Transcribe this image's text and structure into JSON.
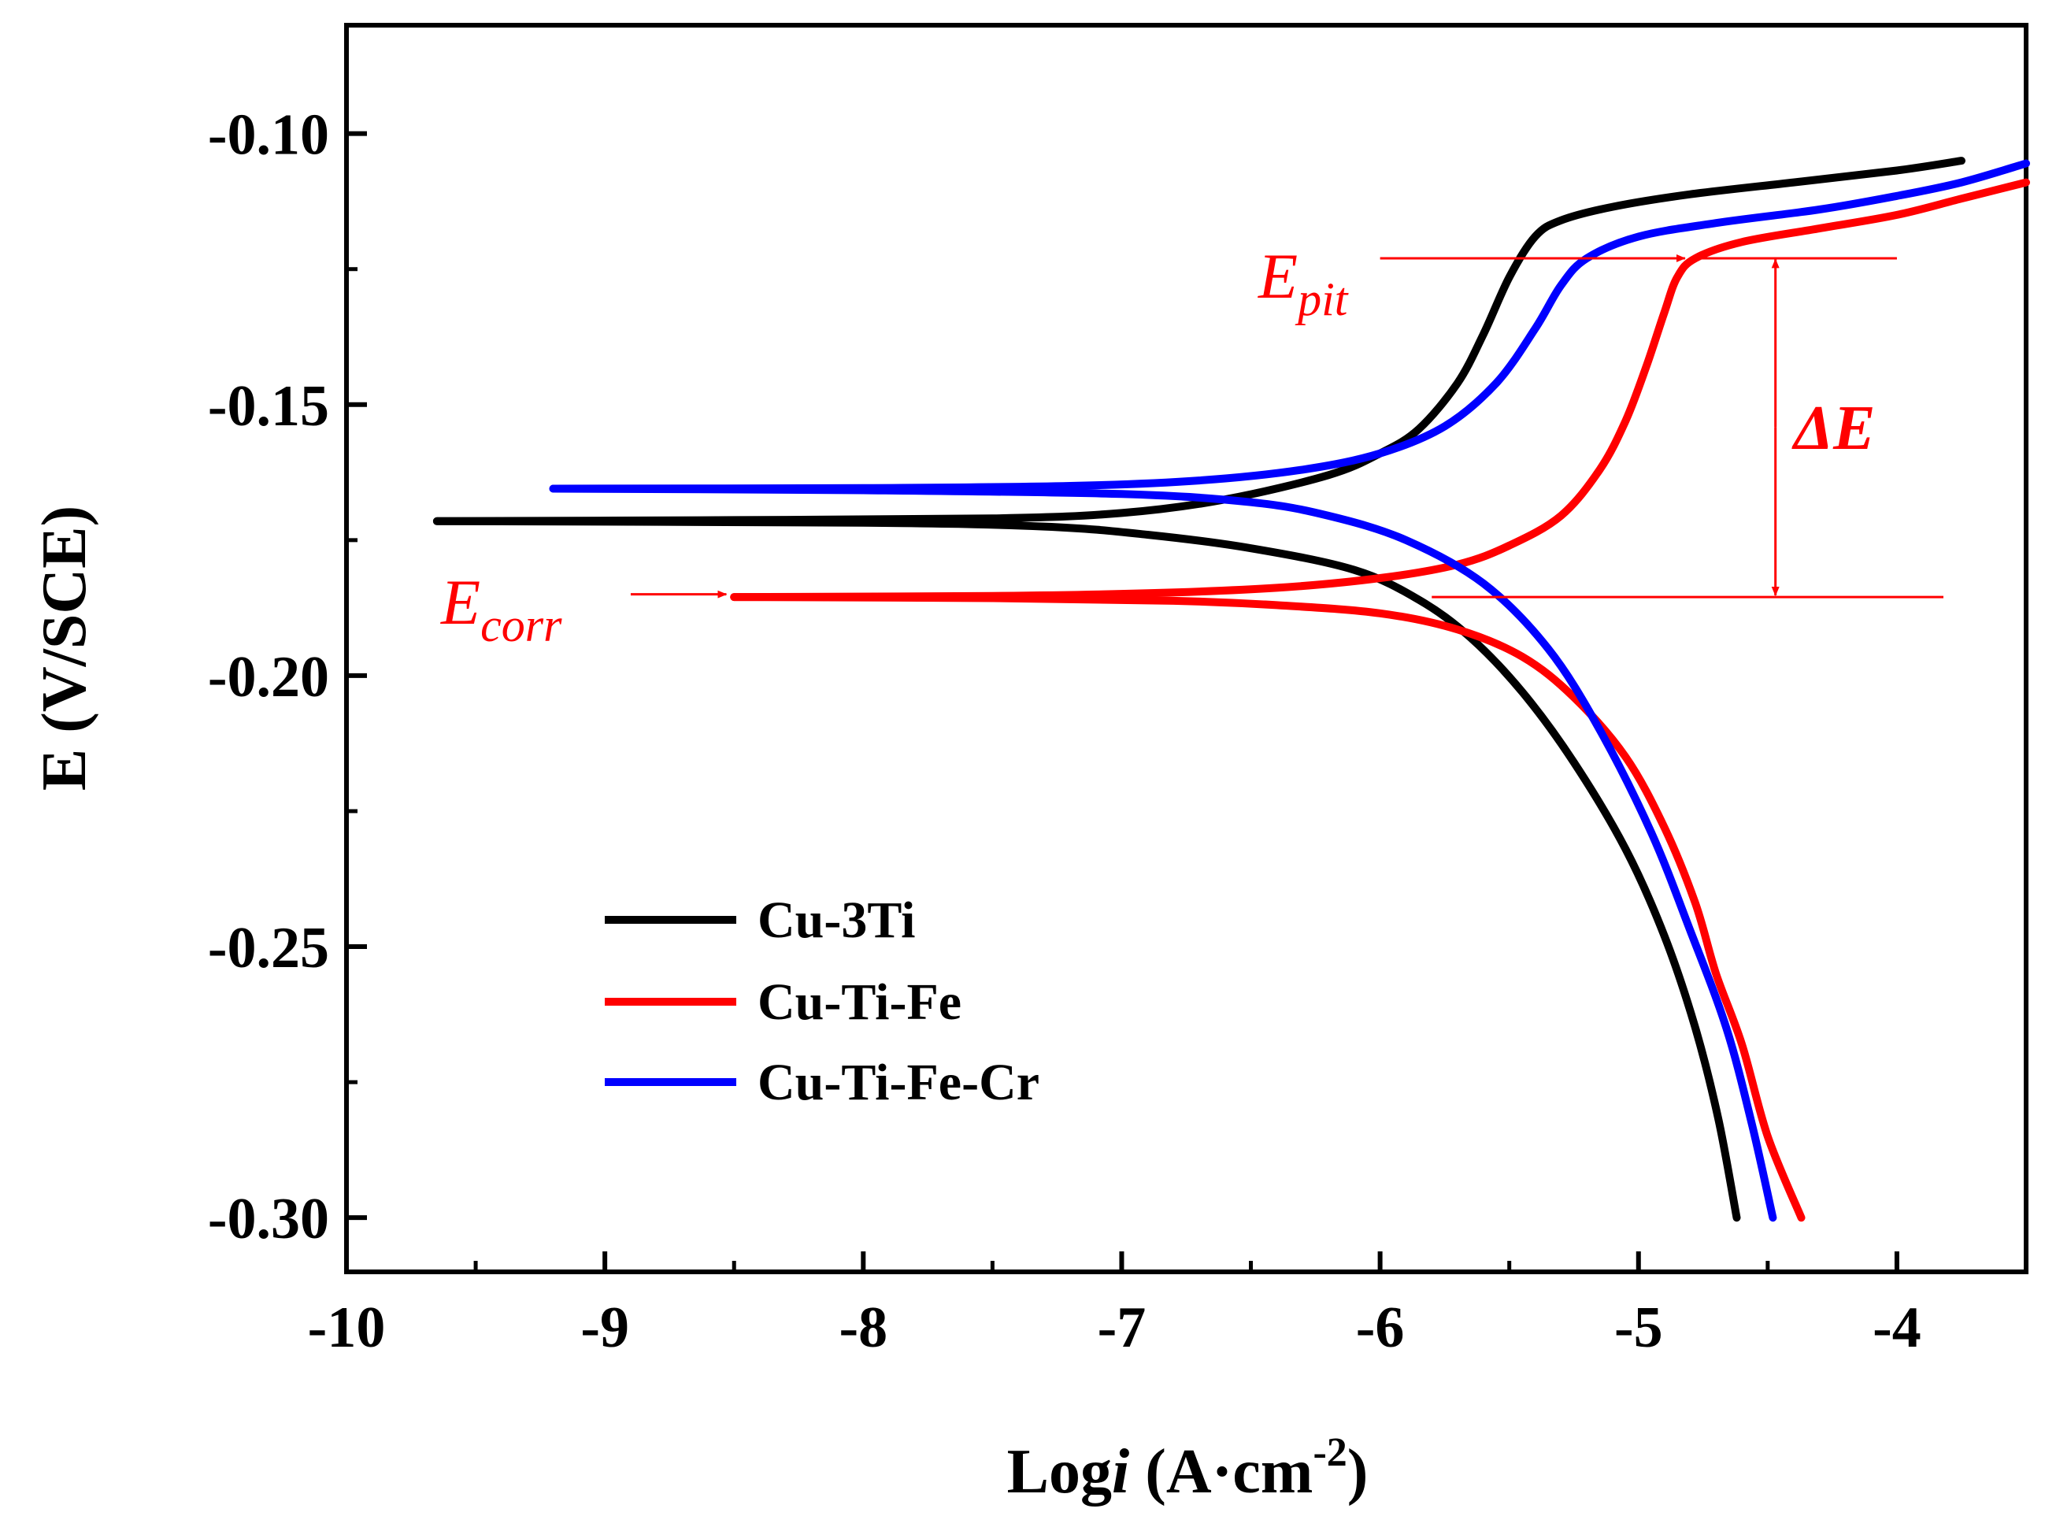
{
  "chart_data": {
    "type": "line",
    "title": "",
    "xlabel": {
      "prefix": "Log",
      "italic": "i",
      "unit": " (A·cm",
      "sup": "-2",
      "close": ")"
    },
    "ylabel": "E (V/SCE)",
    "xlim": [
      -10,
      -3.5
    ],
    "ylim": [
      -0.31,
      -0.08
    ],
    "x_ticks": [
      -10,
      -9,
      -8,
      -7,
      -6,
      -5,
      -4
    ],
    "x_tick_labels": [
      "-10",
      "-9",
      "-8",
      "-7",
      "-6",
      "-5",
      "-4"
    ],
    "y_ticks": [
      -0.3,
      -0.25,
      -0.2,
      -0.15,
      -0.1
    ],
    "y_tick_labels": [
      "-0.30",
      "-0.25",
      "-0.20",
      "-0.15",
      "-0.10"
    ],
    "legend_position": "bottom-left",
    "series": [
      {
        "name": "Cu-3Ti",
        "color": "#000000",
        "anodic": [
          [
            -9.65,
            -0.1715
          ],
          [
            -8.5,
            -0.1713
          ],
          [
            -7.5,
            -0.171
          ],
          [
            -7.0,
            -0.17
          ],
          [
            -6.6,
            -0.1675
          ],
          [
            -6.2,
            -0.163
          ],
          [
            -6.0,
            -0.159
          ],
          [
            -5.85,
            -0.1545
          ],
          [
            -5.7,
            -0.146
          ],
          [
            -5.6,
            -0.137
          ],
          [
            -5.5,
            -0.1265
          ],
          [
            -5.4,
            -0.119
          ],
          [
            -5.3,
            -0.116
          ],
          [
            -5.1,
            -0.1135
          ],
          [
            -4.8,
            -0.1112
          ],
          [
            -4.4,
            -0.109
          ],
          [
            -4.0,
            -0.1068
          ],
          [
            -3.75,
            -0.105
          ]
        ],
        "cathodic": [
          [
            -9.65,
            -0.1715
          ],
          [
            -8.0,
            -0.1718
          ],
          [
            -7.3,
            -0.1725
          ],
          [
            -6.9,
            -0.174
          ],
          [
            -6.5,
            -0.1765
          ],
          [
            -6.1,
            -0.1805
          ],
          [
            -5.85,
            -0.186
          ],
          [
            -5.65,
            -0.193
          ],
          [
            -5.45,
            -0.203
          ],
          [
            -5.25,
            -0.216
          ],
          [
            -5.05,
            -0.232
          ],
          [
            -4.9,
            -0.248
          ],
          [
            -4.78,
            -0.265
          ],
          [
            -4.69,
            -0.282
          ],
          [
            -4.62,
            -0.3
          ]
        ]
      },
      {
        "name": "Cu-Ti-Fe",
        "color": "#ff0000",
        "anodic": [
          [
            -8.5,
            -0.1855
          ],
          [
            -7.5,
            -0.1853
          ],
          [
            -6.9,
            -0.1848
          ],
          [
            -6.4,
            -0.1838
          ],
          [
            -6.0,
            -0.182
          ],
          [
            -5.7,
            -0.1795
          ],
          [
            -5.5,
            -0.176
          ],
          [
            -5.3,
            -0.1705
          ],
          [
            -5.15,
            -0.162
          ],
          [
            -5.05,
            -0.153
          ],
          [
            -4.97,
            -0.143
          ],
          [
            -4.9,
            -0.133
          ],
          [
            -4.85,
            -0.1265
          ],
          [
            -4.78,
            -0.123
          ],
          [
            -4.6,
            -0.12
          ],
          [
            -4.3,
            -0.1175
          ],
          [
            -4.0,
            -0.115
          ],
          [
            -3.75,
            -0.112
          ],
          [
            -3.5,
            -0.109
          ]
        ],
        "cathodic": [
          [
            -8.5,
            -0.1855
          ],
          [
            -7.5,
            -0.1857
          ],
          [
            -6.8,
            -0.1862
          ],
          [
            -6.4,
            -0.187
          ],
          [
            -6.0,
            -0.1885
          ],
          [
            -5.7,
            -0.1915
          ],
          [
            -5.45,
            -0.1965
          ],
          [
            -5.25,
            -0.204
          ],
          [
            -5.05,
            -0.215
          ],
          [
            -4.9,
            -0.228
          ],
          [
            -4.78,
            -0.242
          ],
          [
            -4.7,
            -0.255
          ],
          [
            -4.6,
            -0.268
          ],
          [
            -4.5,
            -0.285
          ],
          [
            -4.37,
            -0.3
          ]
        ]
      },
      {
        "name": "Cu-Ti-Fe-Cr",
        "color": "#0000ff",
        "anodic": [
          [
            -9.2,
            -0.1655
          ],
          [
            -8.0,
            -0.1654
          ],
          [
            -7.2,
            -0.165
          ],
          [
            -6.7,
            -0.164
          ],
          [
            -6.3,
            -0.162
          ],
          [
            -6.0,
            -0.159
          ],
          [
            -5.75,
            -0.154
          ],
          [
            -5.55,
            -0.146
          ],
          [
            -5.4,
            -0.136
          ],
          [
            -5.3,
            -0.128
          ],
          [
            -5.2,
            -0.123
          ],
          [
            -5.0,
            -0.119
          ],
          [
            -4.7,
            -0.1165
          ],
          [
            -4.3,
            -0.114
          ],
          [
            -4.0,
            -0.1115
          ],
          [
            -3.75,
            -0.109
          ],
          [
            -3.5,
            -0.1055
          ]
        ],
        "cathodic": [
          [
            -9.2,
            -0.1655
          ],
          [
            -8.0,
            -0.1658
          ],
          [
            -7.0,
            -0.1665
          ],
          [
            -6.5,
            -0.168
          ],
          [
            -6.2,
            -0.1705
          ],
          [
            -5.9,
            -0.175
          ],
          [
            -5.6,
            -0.183
          ],
          [
            -5.35,
            -0.195
          ],
          [
            -5.15,
            -0.21
          ],
          [
            -4.95,
            -0.229
          ],
          [
            -4.8,
            -0.247
          ],
          [
            -4.66,
            -0.265
          ],
          [
            -4.56,
            -0.283
          ],
          [
            -4.48,
            -0.3
          ]
        ]
      }
    ],
    "annotations": {
      "e_corr": {
        "main": "E",
        "sub": "corr",
        "arrow_from_x": -8.9,
        "arrow_to_x": -8.53,
        "y": -0.185
      },
      "e_pit": {
        "main": "E",
        "sub": "pit",
        "arrow_from_x": -6.0,
        "arrow_to_x": -4.82,
        "y": -0.123
      },
      "corr_line": {
        "x_start": -5.8,
        "x_end": -3.82,
        "y": -0.1855
      },
      "pit_line": {
        "x_start": -4.8,
        "x_end": -4.0,
        "y": -0.123
      },
      "delta_e": {
        "label": "ΔE",
        "x": -4.47,
        "y_top": -0.1232,
        "y_bottom": -0.1852
      },
      "color": "#ff0000"
    }
  }
}
